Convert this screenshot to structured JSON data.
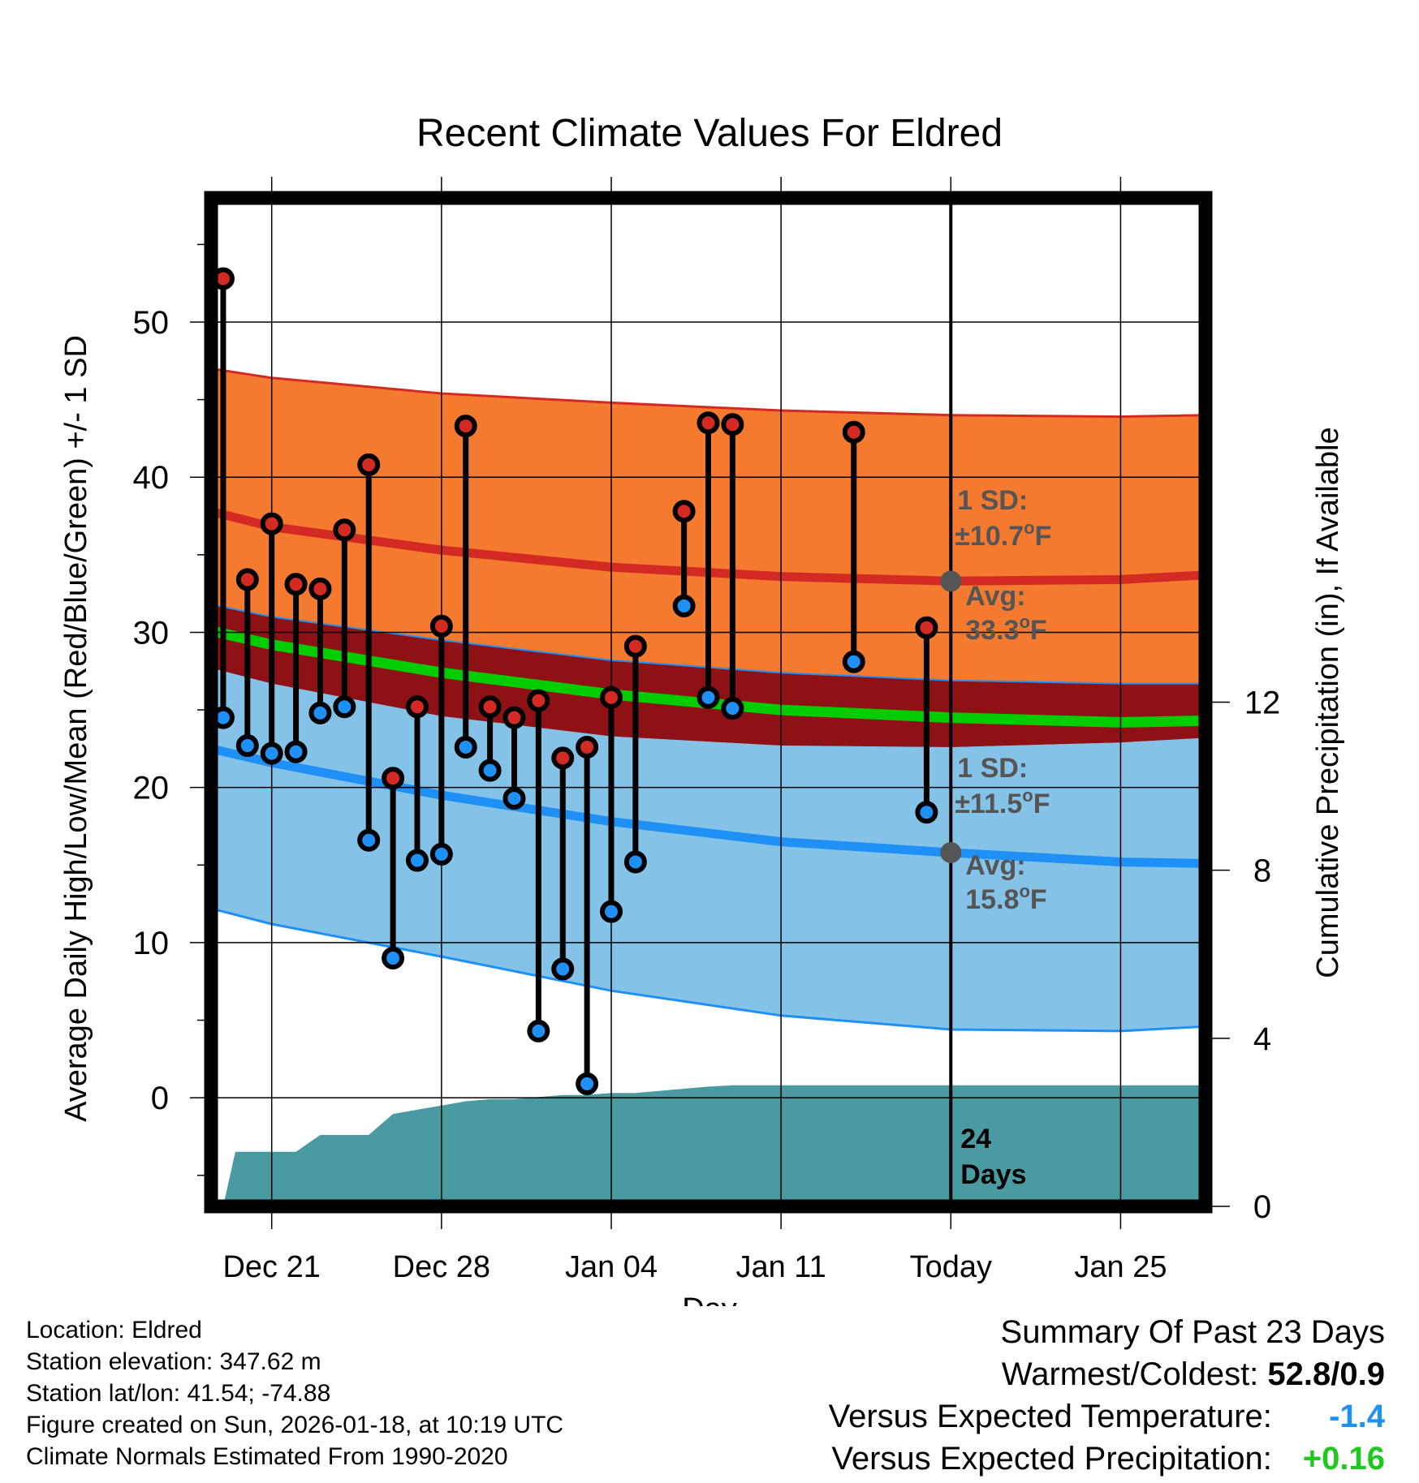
{
  "colors": {
    "high_band": "#f47a30",
    "low_band": "#85c2e8",
    "overlap_band": "#8e1116",
    "high_mean": "#d42a24",
    "low_mean": "#1f90f5",
    "mean_line": "#00cc00",
    "precip": "#4a9aa2",
    "marker_high": "#d42a24",
    "marker_low": "#1f90f5",
    "annotation": "#555555",
    "warm_color": "#000000",
    "temp_diff_color": "#1f90f5",
    "precip_diff_color": "#1ec81e"
  },
  "chart_data": {
    "type": "line",
    "title": "Recent Climate Values For Eldred",
    "xlabel": "Day",
    "ylabel": "Average Daily High/Low/Mean (Red/Blue/Green) +/- 1 SD",
    "y2label": "Cumulative Precipitation (in), If Available",
    "xlim": [
      -2.5,
      38.5
    ],
    "ylim": [
      -7,
      58
    ],
    "y2lim": [
      0,
      24
    ],
    "x_ticks": [
      {
        "x": 0,
        "label": "Dec 21"
      },
      {
        "x": 7,
        "label": "Dec 28"
      },
      {
        "x": 14,
        "label": "Jan 04"
      },
      {
        "x": 21,
        "label": "Jan 11"
      },
      {
        "x": 28,
        "label": "Today"
      },
      {
        "x": 35,
        "label": "Jan 25"
      }
    ],
    "y_ticks": [
      0,
      10,
      20,
      30,
      40,
      50
    ],
    "y2_ticks": [
      0,
      4,
      8,
      12
    ],
    "today_x": 28,
    "normals": {
      "x": [
        -2.5,
        0,
        7,
        14,
        21,
        28,
        35,
        38.5
      ],
      "high_mean": [
        37.8,
        36.8,
        35.3,
        34.2,
        33.6,
        33.3,
        33.4,
        33.7
      ],
      "low_mean": [
        22.5,
        21.6,
        19.5,
        17.8,
        16.5,
        15.8,
        15.2,
        15.1
      ],
      "mean": [
        30.1,
        29.2,
        27.4,
        26.0,
        25.0,
        24.5,
        24.2,
        24.3
      ],
      "high_minus_sd": [
        31.8,
        31.0,
        29.5,
        28.2,
        27.4,
        26.9,
        26.7,
        26.7
      ],
      "high_plus_sd": [
        47.0,
        46.4,
        45.4,
        44.8,
        44.3,
        44.0,
        43.9,
        44.0
      ],
      "low_plus_sd": [
        27.7,
        26.7,
        24.6,
        23.3,
        22.7,
        22.6,
        22.9,
        23.2
      ],
      "low_minus_sd": [
        12.2,
        11.2,
        9.1,
        6.9,
        5.3,
        4.4,
        4.3,
        4.6
      ]
    },
    "observations": {
      "x": [
        -2,
        -1,
        0,
        1,
        2,
        3,
        4,
        5,
        6,
        7,
        8,
        9,
        10,
        11,
        12,
        13,
        14,
        15,
        17,
        18,
        19,
        24,
        27
      ],
      "high": [
        52.8,
        33.4,
        37.0,
        33.1,
        32.8,
        36.6,
        40.8,
        20.6,
        25.2,
        30.4,
        43.3,
        25.2,
        24.5,
        25.6,
        21.9,
        22.6,
        25.8,
        29.1,
        37.8,
        43.5,
        43.4,
        42.9,
        30.3
      ],
      "low": [
        24.5,
        22.7,
        22.2,
        22.3,
        24.8,
        25.2,
        16.6,
        9.0,
        15.3,
        15.7,
        22.6,
        21.1,
        19.3,
        4.3,
        8.3,
        0.9,
        12.0,
        15.2,
        31.7,
        25.8,
        25.1,
        28.1,
        18.4
      ]
    },
    "precip": {
      "x": [
        -2.5,
        -2,
        -1.5,
        -0.5,
        1,
        2,
        4,
        5,
        6,
        7,
        8,
        9,
        10,
        11,
        12,
        13,
        14,
        15,
        16,
        17,
        18,
        19,
        24,
        28,
        38.5
      ],
      "values": [
        0,
        0,
        1.3,
        1.3,
        1.3,
        1.7,
        1.7,
        2.2,
        2.3,
        2.4,
        2.5,
        2.55,
        2.55,
        2.6,
        2.65,
        2.65,
        2.7,
        2.7,
        2.75,
        2.8,
        2.85,
        2.88,
        2.88,
        2.88,
        2.88
      ]
    },
    "annotations": {
      "high_sd_label": "1 SD:",
      "high_sd_value": "±10.7",
      "high_avg_label": "Avg:",
      "high_avg_value": "33.3",
      "low_sd_label": "1 SD:",
      "low_sd_value": "±11.5",
      "low_avg_label": "Avg:",
      "low_avg_value": "15.8",
      "degree": "o",
      "unit": "F",
      "days_count": "24",
      "days_word": "Days"
    }
  },
  "station_info": {
    "location": "Location: Eldred",
    "elevation": "Station elevation: 347.62 m",
    "latlon": "Station lat/lon: 41.54; -74.88",
    "created": "Figure created on Sun, 2026-01-18, at 10:19 UTC",
    "normals_period": "Climate Normals Estimated From 1990-2020"
  },
  "summary": {
    "title": "Summary Of Past 23 Days",
    "warm_cold_label": "Warmest/Coldest:",
    "warm_cold_value": "52.8/0.9",
    "temp_label": "Versus Expected Temperature:",
    "temp_value": "-1.4",
    "precip_label": "Versus Expected Precipitation:",
    "precip_value": "+0.16"
  }
}
